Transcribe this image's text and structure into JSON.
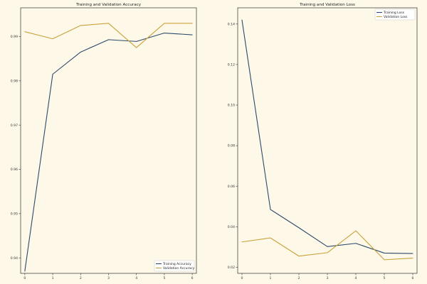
{
  "chart_data": [
    {
      "type": "line",
      "title": "Training and Validation Accuracy",
      "xlabel": "",
      "ylabel": "",
      "x": [
        0,
        1,
        2,
        3,
        4,
        5,
        6
      ],
      "xlim": [
        -0.15,
        6.15
      ],
      "ylim": [
        0.9365,
        0.9965
      ],
      "xticks": [
        "0",
        "1",
        "2",
        "3",
        "4",
        "5",
        "6"
      ],
      "yticks": [
        "0.94",
        "0.95",
        "0.96",
        "0.97",
        "0.98",
        "0.99"
      ],
      "ytick_values": [
        0.94,
        0.95,
        0.96,
        0.97,
        0.98,
        0.99
      ],
      "grid": false,
      "legend_position": "bottom-right",
      "series": [
        {
          "name": "Training Accuracy",
          "color": "#2d4a6b",
          "values": [
            0.937,
            0.9815,
            0.9865,
            0.9893,
            0.9889,
            0.9908,
            0.9904
          ]
        },
        {
          "name": "Validation Accuracy",
          "color": "#c9a23a",
          "values": [
            0.9911,
            0.9895,
            0.9925,
            0.993,
            0.9875,
            0.993,
            0.993
          ]
        }
      ]
    },
    {
      "type": "line",
      "title": "Training and Validation Loss",
      "xlabel": "",
      "ylabel": "",
      "x": [
        0,
        1,
        2,
        3,
        4,
        5,
        6
      ],
      "xlim": [
        -0.15,
        6.15
      ],
      "ylim": [
        0.017,
        0.148
      ],
      "xticks": [
        "0",
        "1",
        "2",
        "3",
        "4",
        "5",
        "6"
      ],
      "yticks": [
        "0.02",
        "0.04",
        "0.06",
        "0.08",
        "0.10",
        "0.12",
        "0.14"
      ],
      "ytick_values": [
        0.02,
        0.04,
        0.06,
        0.08,
        0.1,
        0.12,
        0.14
      ],
      "grid": false,
      "legend_position": "top-right",
      "series": [
        {
          "name": "Training Loss",
          "color": "#2d4a6b",
          "values": [
            0.142,
            0.0485,
            0.0395,
            0.0302,
            0.0318,
            0.027,
            0.0268
          ]
        },
        {
          "name": "Validation Loss",
          "color": "#c9a23a",
          "values": [
            0.0325,
            0.0345,
            0.0255,
            0.0272,
            0.038,
            0.0237,
            0.0245
          ]
        }
      ]
    }
  ]
}
